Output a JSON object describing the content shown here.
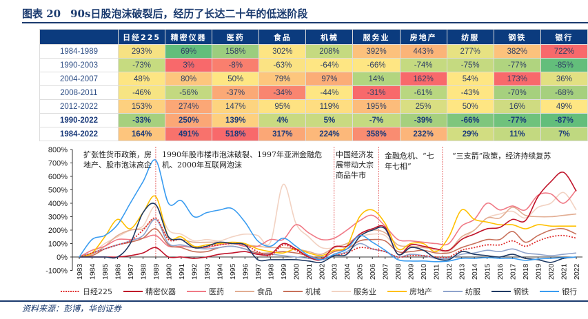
{
  "title": {
    "number": "图表 20",
    "text": "90s日股泡沫破裂后，经历了长达二十年的低迷阶段"
  },
  "table": {
    "columns": [
      "日经225",
      "精密仪器",
      "医药",
      "食品",
      "机械",
      "服务业",
      "房地产",
      "纺服",
      "钢铁",
      "银行"
    ],
    "rows": [
      {
        "period": "1984-1989",
        "bold": false,
        "values": [
          "293%",
          "69%",
          "158%",
          "302%",
          "208%",
          "392%",
          "443%",
          "277%",
          "382%",
          "722%"
        ],
        "colors": [
          "#f6e283",
          "#63be7b",
          "#9ccd7e",
          "#fde583",
          "#c5da80",
          "#fcc17c",
          "#fbb478",
          "#e7e282",
          "#fcc27c",
          "#f8696b"
        ]
      },
      {
        "period": "1990-2003",
        "bold": false,
        "values": [
          "-73%",
          "3%",
          "-8%",
          "-63%",
          "-64%",
          "-66%",
          "-74%",
          "-75%",
          "-77%",
          "-85%"
        ],
        "colors": [
          "#c6db80",
          "#f8696b",
          "#f97f6e",
          "#fbe383",
          "#fee683",
          "#fee683",
          "#c5da80",
          "#c5da80",
          "#b0d47f",
          "#63be7b"
        ]
      },
      {
        "period": "2004-2007",
        "bold": false,
        "values": [
          "48%",
          "80%",
          "50%",
          "79%",
          "97%",
          "14%",
          "162%",
          "54%",
          "173%",
          "36%"
        ],
        "colors": [
          "#fde583",
          "#fdc67d",
          "#fee683",
          "#fdc67d",
          "#fbad77",
          "#b2d57f",
          "#f8696b",
          "#fee683",
          "#f8696b",
          "#e2e082"
        ]
      },
      {
        "period": "2008-2011",
        "bold": false,
        "values": [
          "-46%",
          "-56%",
          "-37%",
          "-34%",
          "-44%",
          "-31%",
          "-61%",
          "-43%",
          "-70%",
          "-68%"
        ],
        "colors": [
          "#f6e483",
          "#c3d980",
          "#fba976",
          "#f98570",
          "#fee683",
          "#f8696b",
          "#b9d780",
          "#fee683",
          "#a6d07e",
          "#a6d07e"
        ]
      },
      {
        "period": "2012-2022",
        "bold": false,
        "values": [
          "153%",
          "274%",
          "147%",
          "95%",
          "119%",
          "195%",
          "25%",
          "50%",
          "16%",
          "49%"
        ],
        "colors": [
          "#fdd07f",
          "#fba776",
          "#fdd47f",
          "#fee282",
          "#fedd81",
          "#fcbc7b",
          "#d9de82",
          "#fee683",
          "#cfdb81",
          "#fee683"
        ]
      },
      {
        "period": "1990-2022",
        "bold": true,
        "values": [
          "-33%",
          "250%",
          "139%",
          "4%",
          "5%",
          "-7%",
          "-39%",
          "-66%",
          "-77%",
          "-87%"
        ],
        "colors": [
          "#a6d07e",
          "#fba776",
          "#fdd07f",
          "#c9da81",
          "#c9da81",
          "#c5da80",
          "#a6d07e",
          "#7fc67d",
          "#6fc27c",
          "#63be7b"
        ]
      },
      {
        "period": "1984-2022",
        "bold": true,
        "values": [
          "164%",
          "491%",
          "518%",
          "317%",
          "224%",
          "358%",
          "232%",
          "29%",
          "11%",
          "7%"
        ],
        "colors": [
          "#fdc57d",
          "#f8726c",
          "#f8696b",
          "#fba776",
          "#fcb87a",
          "#f98c71",
          "#fcb57a",
          "#d2dd81",
          "#c3d980",
          "#bfd880"
        ]
      }
    ]
  },
  "annotations": [
    {
      "text": "扩张性货币政策，房地产、股市泡沫高企"
    },
    {
      "text": "1990年股市楼市泡沫破裂、1997年亚洲金融危机、2000年互联网泡沫"
    },
    {
      "text": "中国经济发展带动大宗商品牛市"
    },
    {
      "text": "金融危机、“七年七相”"
    },
    {
      "text": "“三支箭”政策，经济持续复苏"
    }
  ],
  "chart_data": {
    "type": "line",
    "x": [
      1983,
      1984,
      1985,
      1986,
      1987,
      1988,
      1989,
      1990,
      1991,
      1992,
      1993,
      1994,
      1995,
      1996,
      1997,
      1998,
      1999,
      2000,
      2001,
      2002,
      2003,
      2004,
      2005,
      2006,
      2007,
      2008,
      2009,
      2010,
      2011,
      2012,
      2013,
      2014,
      2015,
      2016,
      2017,
      2018,
      2019,
      2020,
      2021,
      2022
    ],
    "ylim": [
      -100,
      800
    ],
    "yticks": [
      "-100%",
      "0%",
      "100%",
      "200%",
      "300%",
      "400%",
      "500%",
      "600%",
      "700%",
      "800%"
    ],
    "ytick_values": [
      -100,
      0,
      100,
      200,
      300,
      400,
      500,
      600,
      700,
      800
    ],
    "period_dividers": [
      1989,
      2003,
      2006.5,
      2011.5
    ],
    "legend_position": "bottom",
    "series": [
      {
        "name": "日经225",
        "color": "#e0302f",
        "dash": true,
        "values": [
          0,
          30,
          60,
          90,
          120,
          200,
          290,
          130,
          130,
          70,
          80,
          90,
          100,
          90,
          40,
          10,
          90,
          50,
          0,
          -20,
          10,
          30,
          70,
          60,
          40,
          0,
          10,
          10,
          0,
          0,
          50,
          70,
          90,
          90,
          120,
          80,
          120,
          150,
          160,
          140
        ]
      },
      {
        "name": "精密仪器",
        "color": "#c0142a",
        "values": [
          0,
          0,
          0,
          0,
          10,
          30,
          70,
          0,
          0,
          -10,
          0,
          20,
          30,
          40,
          20,
          20,
          100,
          60,
          0,
          -20,
          75,
          80,
          170,
          210,
          220,
          20,
          90,
          80,
          60,
          50,
          130,
          170,
          210,
          220,
          280,
          270,
          450,
          560,
          630,
          490
        ]
      },
      {
        "name": "医药",
        "color": "#f07a86",
        "values": [
          0,
          50,
          80,
          130,
          130,
          140,
          160,
          80,
          80,
          70,
          70,
          90,
          100,
          80,
          80,
          130,
          130,
          240,
          180,
          130,
          140,
          200,
          270,
          310,
          230,
          130,
          120,
          110,
          100,
          100,
          230,
          280,
          400,
          350,
          380,
          350,
          460,
          470,
          400,
          500
        ]
      },
      {
        "name": "食品",
        "color": "#e2ad92",
        "values": [
          0,
          20,
          80,
          160,
          200,
          210,
          280,
          140,
          130,
          110,
          110,
          110,
          100,
          90,
          80,
          70,
          70,
          60,
          40,
          20,
          70,
          100,
          160,
          200,
          180,
          90,
          80,
          70,
          60,
          50,
          150,
          200,
          290,
          290,
          370,
          310,
          300,
          300,
          310,
          320
        ]
      },
      {
        "name": "机械",
        "color": "#c8705a",
        "values": [
          0,
          10,
          60,
          90,
          110,
          140,
          210,
          90,
          70,
          40,
          40,
          70,
          80,
          60,
          30,
          30,
          40,
          30,
          10,
          -10,
          40,
          60,
          120,
          130,
          120,
          40,
          40,
          50,
          30,
          30,
          70,
          100,
          130,
          130,
          190,
          110,
          160,
          200,
          210,
          170
        ]
      },
      {
        "name": "服务业",
        "color": "#f2d2c2",
        "values": [
          0,
          30,
          100,
          150,
          200,
          230,
          380,
          200,
          170,
          120,
          130,
          120,
          150,
          170,
          160,
          110,
          540,
          250,
          150,
          70,
          70,
          100,
          150,
          170,
          160,
          60,
          70,
          80,
          50,
          40,
          130,
          200,
          290,
          320,
          340,
          290,
          370,
          400,
          480,
          350
        ]
      },
      {
        "name": "房地产",
        "color": "#ffc000",
        "values": [
          0,
          30,
          150,
          280,
          210,
          330,
          450,
          150,
          150,
          80,
          90,
          100,
          110,
          100,
          60,
          40,
          30,
          60,
          30,
          10,
          50,
          80,
          300,
          350,
          250,
          60,
          100,
          100,
          40,
          150,
          350,
          280,
          260,
          240,
          240,
          210,
          240,
          230,
          230,
          230
        ]
      },
      {
        "name": "纺服",
        "color": "#8fa3cc",
        "values": [
          0,
          30,
          60,
          90,
          120,
          160,
          280,
          100,
          90,
          70,
          60,
          70,
          80,
          60,
          20,
          20,
          10,
          0,
          -10,
          -20,
          10,
          40,
          100,
          60,
          40,
          0,
          20,
          10,
          -10,
          -10,
          20,
          30,
          50,
          40,
          60,
          30,
          20,
          10,
          20,
          30
        ]
      },
      {
        "name": "钢铁",
        "color": "#1f3a64",
        "values": [
          0,
          0,
          0,
          0,
          100,
          330,
          390,
          150,
          130,
          70,
          80,
          110,
          100,
          90,
          -20,
          -20,
          -20,
          -20,
          -30,
          -40,
          10,
          20,
          150,
          200,
          210,
          20,
          70,
          50,
          -10,
          -20,
          40,
          20,
          10,
          0,
          20,
          -10,
          -20,
          -40,
          -10,
          0
        ]
      },
      {
        "name": "银行",
        "color": "#3a9cf0",
        "values": [
          0,
          130,
          160,
          240,
          400,
          560,
          720,
          400,
          420,
          300,
          330,
          350,
          360,
          260,
          120,
          80,
          140,
          80,
          10,
          -20,
          20,
          60,
          160,
          110,
          50,
          -20,
          -30,
          -30,
          -35,
          -30,
          -10,
          -10,
          -5,
          -10,
          -10,
          -25,
          -15,
          -10,
          -5,
          0
        ]
      }
    ]
  },
  "source": "资料来源：彭博，华创证券"
}
